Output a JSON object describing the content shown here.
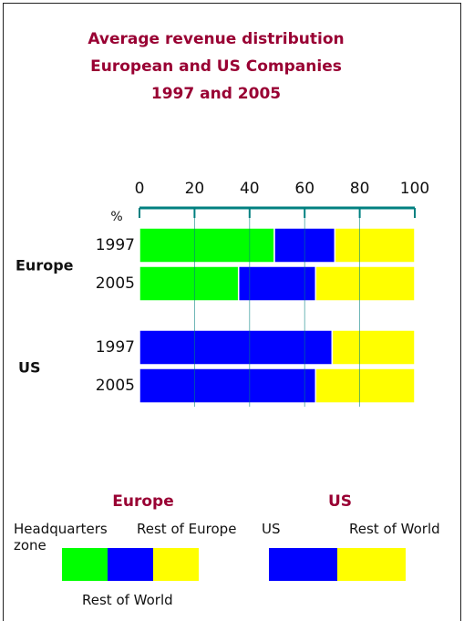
{
  "chart_data": {
    "type": "stacked-bar-horizontal",
    "title": [
      "Average revenue distribution",
      "European and US Companies",
      "1997 and 2005"
    ],
    "x_label": "%",
    "xlim": [
      0,
      100
    ],
    "xticks": [
      0,
      20,
      40,
      60,
      80,
      100
    ],
    "grid": true,
    "groups": [
      {
        "name": "Europe",
        "categories": [
          "1997",
          "2005"
        ],
        "series": [
          {
            "name": "Headquarters zone",
            "color": "#00ff00",
            "values": [
              49,
              36
            ]
          },
          {
            "name": "Rest of Europe",
            "color": "#0000ff",
            "values": [
              22,
              28
            ]
          },
          {
            "name": "Rest of World",
            "color": "#ffff00",
            "values": [
              29,
              36
            ]
          }
        ]
      },
      {
        "name": "US",
        "categories": [
          "1997",
          "2005"
        ],
        "series": [
          {
            "name": "US",
            "color": "#0000ff",
            "values": [
              70,
              64
            ]
          },
          {
            "name": "Rest of World",
            "color": "#ffff00",
            "values": [
              30,
              36
            ]
          }
        ]
      }
    ]
  }
}
